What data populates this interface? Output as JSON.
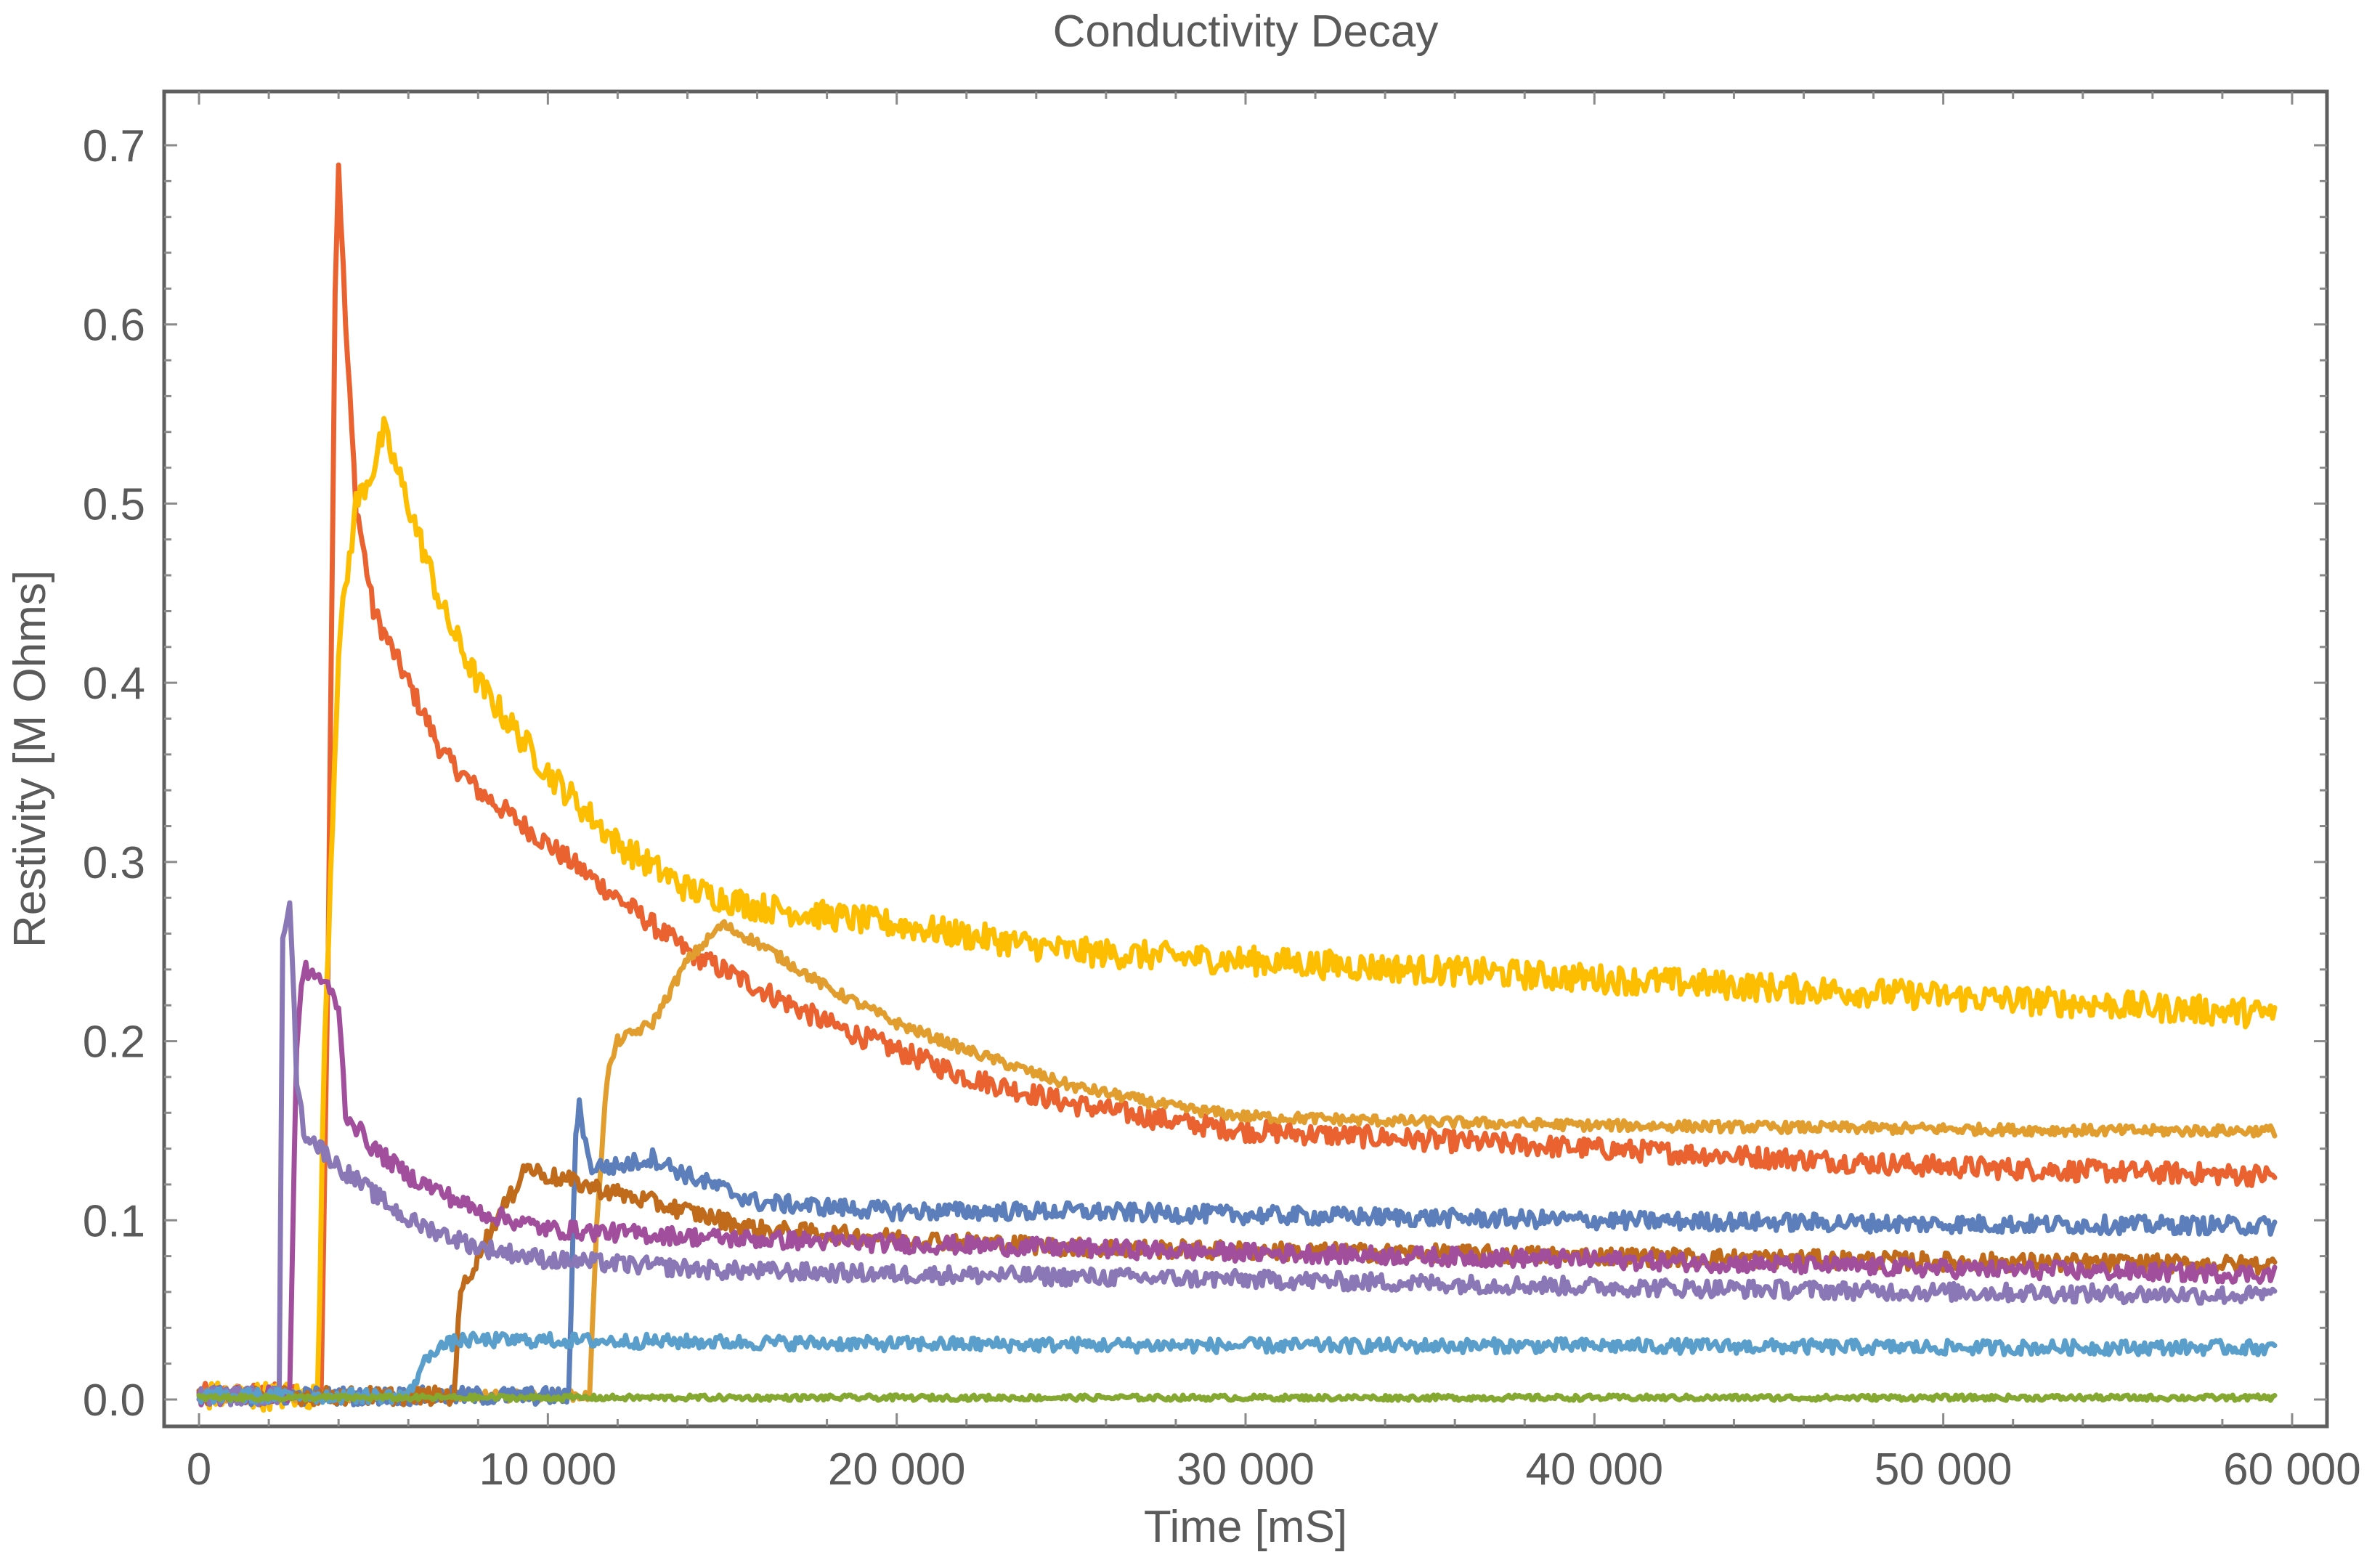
{
  "chart_data": {
    "type": "line",
    "title": "Conductivity Decay",
    "xlabel": "Time [mS]",
    "ylabel": "Restivity [M Ohms]",
    "xlim": [
      -1000,
      61000
    ],
    "ylim": [
      -0.015,
      0.73
    ],
    "grid": false,
    "legend": "none",
    "x_ticks": [
      0,
      10000,
      20000,
      30000,
      40000,
      50000,
      60000
    ],
    "x_tick_labels": [
      "0",
      "10 000",
      "20 000",
      "30 000",
      "40 000",
      "50 000",
      "60 000"
    ],
    "y_ticks": [
      0.0,
      0.1,
      0.2,
      0.3,
      0.4,
      0.5,
      0.6,
      0.7
    ],
    "y_tick_labels": [
      "0.0",
      "0.1",
      "0.2",
      "0.3",
      "0.4",
      "0.5",
      "0.6",
      "0.7"
    ],
    "series": [
      {
        "color": "#e9622f",
        "noise": 0.006,
        "points": [
          [
            0,
            0.003
          ],
          [
            3500,
            0.003
          ],
          [
            3700,
            0.25
          ],
          [
            3900,
            0.62
          ],
          [
            4000,
            0.69
          ],
          [
            4200,
            0.6
          ],
          [
            4500,
            0.5
          ],
          [
            5000,
            0.44
          ],
          [
            6000,
            0.4
          ],
          [
            7000,
            0.36
          ],
          [
            8000,
            0.34
          ],
          [
            10000,
            0.31
          ],
          [
            12000,
            0.28
          ],
          [
            14000,
            0.25
          ],
          [
            16000,
            0.23
          ],
          [
            18000,
            0.21
          ],
          [
            20000,
            0.195
          ],
          [
            22000,
            0.18
          ],
          [
            25000,
            0.165
          ],
          [
            28000,
            0.155
          ],
          [
            30000,
            0.15
          ],
          [
            35000,
            0.145
          ],
          [
            40000,
            0.14
          ],
          [
            45000,
            0.135
          ],
          [
            50000,
            0.13
          ],
          [
            55000,
            0.127
          ],
          [
            59500,
            0.125
          ]
        ]
      },
      {
        "color": "#fdbd00",
        "noise": 0.008,
        "points": [
          [
            0,
            0.002
          ],
          [
            3400,
            0.002
          ],
          [
            3600,
            0.2
          ],
          [
            4000,
            0.42
          ],
          [
            4500,
            0.5
          ],
          [
            5000,
            0.52
          ],
          [
            5300,
            0.54
          ],
          [
            6000,
            0.5
          ],
          [
            7000,
            0.44
          ],
          [
            8000,
            0.4
          ],
          [
            10000,
            0.35
          ],
          [
            12000,
            0.31
          ],
          [
            14000,
            0.285
          ],
          [
            16000,
            0.275
          ],
          [
            18000,
            0.27
          ],
          [
            20000,
            0.265
          ],
          [
            25000,
            0.25
          ],
          [
            30000,
            0.245
          ],
          [
            35000,
            0.24
          ],
          [
            40000,
            0.235
          ],
          [
            45000,
            0.23
          ],
          [
            50000,
            0.225
          ],
          [
            55000,
            0.22
          ],
          [
            59500,
            0.215
          ]
        ]
      },
      {
        "color": "#e19d2d",
        "noise": 0.003,
        "points": [
          [
            0,
            0.002
          ],
          [
            11200,
            0.002
          ],
          [
            11400,
            0.1
          ],
          [
            11700,
            0.18
          ],
          [
            12000,
            0.2
          ],
          [
            13000,
            0.21
          ],
          [
            14000,
            0.245
          ],
          [
            15000,
            0.265
          ],
          [
            16000,
            0.255
          ],
          [
            18000,
            0.23
          ],
          [
            20000,
            0.21
          ],
          [
            22000,
            0.195
          ],
          [
            25000,
            0.175
          ],
          [
            28000,
            0.163
          ],
          [
            30000,
            0.158
          ],
          [
            35000,
            0.155
          ],
          [
            40000,
            0.153
          ],
          [
            45000,
            0.152
          ],
          [
            50000,
            0.151
          ],
          [
            55000,
            0.15
          ],
          [
            59500,
            0.15
          ]
        ]
      },
      {
        "color": "#5c7fbb",
        "noise": 0.005,
        "points": [
          [
            0,
            0.002
          ],
          [
            10600,
            0.002
          ],
          [
            10800,
            0.15
          ],
          [
            10900,
            0.165
          ],
          [
            11200,
            0.13
          ],
          [
            12000,
            0.13
          ],
          [
            13000,
            0.135
          ],
          [
            14000,
            0.125
          ],
          [
            16000,
            0.11
          ],
          [
            20000,
            0.105
          ],
          [
            25000,
            0.105
          ],
          [
            30000,
            0.103
          ],
          [
            40000,
            0.1
          ],
          [
            50000,
            0.098
          ],
          [
            59500,
            0.097
          ]
        ]
      },
      {
        "color": "#c06b1b",
        "noise": 0.005,
        "points": [
          [
            0,
            0.002
          ],
          [
            7300,
            0.002
          ],
          [
            7500,
            0.06
          ],
          [
            8000,
            0.08
          ],
          [
            8500,
            0.1
          ],
          [
            9000,
            0.115
          ],
          [
            9300,
            0.13
          ],
          [
            10000,
            0.125
          ],
          [
            12000,
            0.115
          ],
          [
            14000,
            0.105
          ],
          [
            16000,
            0.095
          ],
          [
            20000,
            0.09
          ],
          [
            25000,
            0.085
          ],
          [
            30000,
            0.083
          ],
          [
            40000,
            0.08
          ],
          [
            50000,
            0.077
          ],
          [
            59500,
            0.075
          ]
        ]
      },
      {
        "color": "#a14f9c",
        "noise": 0.005,
        "points": [
          [
            0,
            0.002
          ],
          [
            2600,
            0.002
          ],
          [
            2800,
            0.2
          ],
          [
            3000,
            0.24
          ],
          [
            3500,
            0.235
          ],
          [
            4000,
            0.22
          ],
          [
            4200,
            0.16
          ],
          [
            5000,
            0.14
          ],
          [
            6000,
            0.125
          ],
          [
            8000,
            0.105
          ],
          [
            10000,
            0.095
          ],
          [
            15000,
            0.09
          ],
          [
            20000,
            0.087
          ],
          [
            30000,
            0.082
          ],
          [
            40000,
            0.078
          ],
          [
            50000,
            0.073
          ],
          [
            59500,
            0.07
          ]
        ]
      },
      {
        "color": "#8a78b6",
        "noise": 0.005,
        "points": [
          [
            0,
            0.002
          ],
          [
            2300,
            0.002
          ],
          [
            2400,
            0.26
          ],
          [
            2600,
            0.28
          ],
          [
            2800,
            0.18
          ],
          [
            3000,
            0.15
          ],
          [
            4000,
            0.13
          ],
          [
            5000,
            0.115
          ],
          [
            6000,
            0.1
          ],
          [
            8000,
            0.085
          ],
          [
            10000,
            0.078
          ],
          [
            15000,
            0.072
          ],
          [
            20000,
            0.07
          ],
          [
            30000,
            0.067
          ],
          [
            40000,
            0.063
          ],
          [
            50000,
            0.06
          ],
          [
            59500,
            0.058
          ]
        ]
      },
      {
        "color": "#5a9fcb",
        "noise": 0.004,
        "points": [
          [
            0,
            0.002
          ],
          [
            6000,
            0.002
          ],
          [
            6300,
            0.015
          ],
          [
            6700,
            0.028
          ],
          [
            7500,
            0.033
          ],
          [
            10000,
            0.033
          ],
          [
            15000,
            0.032
          ],
          [
            20000,
            0.031
          ],
          [
            30000,
            0.03
          ],
          [
            40000,
            0.03
          ],
          [
            50000,
            0.029
          ],
          [
            59500,
            0.029
          ]
        ]
      },
      {
        "color": "#84a830",
        "noise": 0.0015,
        "points": [
          [
            0,
            0.001
          ],
          [
            10000,
            0.001
          ],
          [
            20000,
            0.001
          ],
          [
            30000,
            0.001
          ],
          [
            40000,
            0.001
          ],
          [
            50000,
            0.001
          ],
          [
            59500,
            0.001
          ]
        ]
      }
    ]
  }
}
